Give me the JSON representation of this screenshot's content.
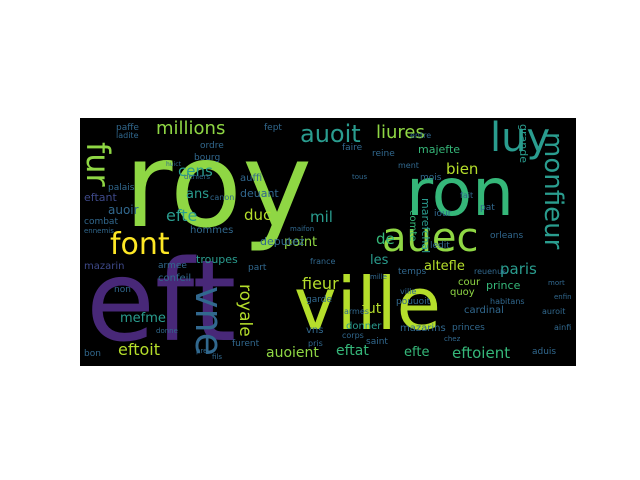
{
  "colors": {
    "background": "#000000",
    "green": "#8fd744",
    "lime": "#b5de2b",
    "teal": "#2a9d8f",
    "seafoam": "#35b779",
    "blue": "#31688e",
    "indigo": "#3e4989",
    "purple": "#482878",
    "yellow": "#fde725"
  },
  "words": {
    "roy": "roy",
    "eft": "eft",
    "ville": "ville",
    "ron": "ron",
    "auec": "auec",
    "luy": "luy",
    "vne": "vne",
    "font": "font",
    "millions": "millions",
    "auoit": "auoit",
    "liures": "liures",
    "monfieur": "monfieur",
    "fieur": "fieur",
    "paris": "paris",
    "eftoit": "eftoit",
    "eftoient": "eftoient",
    "royale": "royale",
    "mefme": "mefme",
    "auoient": "auoient",
    "eftat": "eftat",
    "efte_bottom": "efte",
    "efte_left": "efte",
    "cens": "cens",
    "ans": "ans",
    "duc": "duc",
    "mil": "mil",
    "bien": "bien",
    "fut": "fut",
    "point": "point",
    "de": "de",
    "les": "les",
    "altefle": "altefle",
    "deputez": "deputez",
    "auoir": "auoir",
    "hommes": "hommes",
    "troupes": "troupes",
    "deuant": "deuant",
    "auffi": "auffi",
    "fur": "fur",
    "eftant": "eftant",
    "mazarin": "mazarin",
    "confeil": "confeil",
    "armee": "armee",
    "garde": "garde",
    "temps": "temps",
    "cardinal": "cardinal",
    "prince": "prince",
    "cour": "cour",
    "quoy": "quoy",
    "comte": "comte",
    "marefchal": "marefchal",
    "grande": "grande",
    "majefte": "majefte",
    "reine": "reine",
    "mois": "mois",
    "iour": "iour",
    "ledit": "ledit",
    "pouuoit": "pouuoit",
    "mazarins": "mazarins",
    "princes": "princes",
    "donner": "donner",
    "vns": "vns",
    "furent": "furent",
    "aduis": "aduis",
    "ainfi": "ainfi",
    "fept": "fept",
    "faire": "faire",
    "paffe": "paffe",
    "ladite": "ladite",
    "ordre": "ordre",
    "bourg": "bourg",
    "palais": "palais",
    "combat": "combat",
    "canon": "canon",
    "part": "part",
    "non": "non",
    "bon": "bon",
    "saint": "saint",
    "france": "france",
    "orleans": "orleans",
    "armes": "armes",
    "corps": "corps",
    "ville2": "ville",
    "entre": "entre",
    "ment": "ment",
    "fait": "fait",
    "pat": "pat",
    "pris": "pris",
    "habitans": "habitans",
    "reuenus": "reuenus",
    "auroit": "auroit",
    "enfin": "enfin",
    "mort": "mort",
    "chez": "chez",
    "pre": "pre",
    "fils": "fils",
    "donne": "donne",
    "huict": "huict",
    "deniers": "deniers",
    "ennemis": "ennemis",
    "tous": "tous",
    "maifon": "maifon",
    "mille": "mille"
  }
}
